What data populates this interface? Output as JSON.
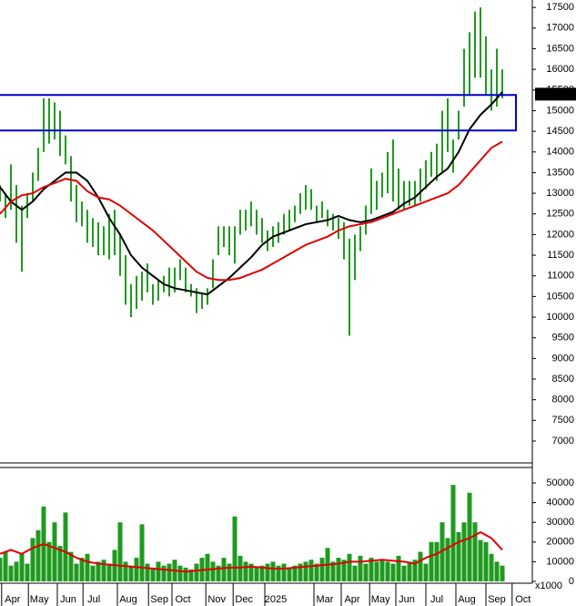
{
  "chart_data": [
    {
      "type": "ohlc",
      "color": "#1f9a1f",
      "xlim": [
        0,
        97.5
      ],
      "xticks": [
        {
          "value": 2.3,
          "label": "Apr"
        },
        {
          "value": 7.2,
          "label": "May"
        },
        {
          "value": 12.5,
          "label": "Jun"
        },
        {
          "value": 17.2,
          "label": "Jul"
        },
        {
          "value": 23.5,
          "label": "Aug"
        },
        {
          "value": 29.2,
          "label": "Sep"
        },
        {
          "value": 33.5,
          "label": "Oct"
        },
        {
          "value": 39.7,
          "label": "Nov"
        },
        {
          "value": 44.7,
          "label": "Dec"
        },
        {
          "value": 50.5,
          "label": "2025"
        },
        {
          "value": 59.5,
          "label": "Mar"
        },
        {
          "value": 64.5,
          "label": "Apr"
        },
        {
          "value": 69.7,
          "label": "May"
        },
        {
          "value": 74.5,
          "label": "Jun"
        },
        {
          "value": 80,
          "label": "Jul"
        },
        {
          "value": 85.5,
          "label": "Aug"
        },
        {
          "value": 91,
          "label": "Sep"
        },
        {
          "value": 95.8,
          "label": "Oct"
        }
      ],
      "ylim": [
        6470,
        17680
      ],
      "yticks": [
        7000,
        7500,
        8000,
        8500,
        9000,
        9500,
        10000,
        10500,
        11000,
        11500,
        12000,
        12500,
        13000,
        13500,
        14000,
        14500,
        15000,
        15500,
        16000,
        16500,
        17000,
        17500
      ],
      "low": [
        12800,
        12400,
        12600,
        11800,
        11100,
        12400,
        12800,
        13300,
        14000,
        14200,
        14300,
        13900,
        13700,
        12800,
        12300,
        12200,
        11800,
        11700,
        11500,
        11500,
        11400,
        11500,
        11000,
        10300,
        10000,
        10200,
        10400,
        10600,
        10300,
        10400,
        10600,
        10500,
        10600,
        10900,
        10600,
        10500,
        10100,
        10200,
        10300,
        10700,
        11500,
        11700,
        11500,
        11300,
        12000,
        12100,
        12200,
        12000,
        11800,
        11600,
        11700,
        11800,
        12000,
        12100,
        12300,
        12500,
        12600,
        12600,
        12300,
        12400,
        12200,
        12100,
        11900,
        11400,
        9550,
        10900,
        11600,
        12000,
        12500,
        12600,
        12900,
        13000,
        12800,
        12600,
        12600,
        12700,
        12700,
        12800,
        13100,
        13400,
        13300,
        13500,
        14000,
        13500,
        14300,
        15100,
        15400,
        15800,
        15800,
        15400,
        15000,
        15100,
        15300
      ],
      "high": [
        13200,
        13000,
        13700,
        13200,
        12700,
        13000,
        13500,
        14100,
        15300,
        15300,
        15200,
        15000,
        14400,
        13900,
        13200,
        12800,
        12600,
        12400,
        12300,
        12200,
        12500,
        12600,
        12000,
        11500,
        10800,
        11000,
        11100,
        11300,
        10800,
        10900,
        11000,
        11200,
        11200,
        11400,
        11200,
        10800,
        10700,
        10600,
        10700,
        11400,
        12200,
        12200,
        12200,
        12200,
        12600,
        12600,
        12800,
        12600,
        12400,
        12100,
        12200,
        12300,
        12500,
        12600,
        12700,
        13000,
        13200,
        13100,
        12700,
        12800,
        12600,
        12500,
        12400,
        12300,
        11900,
        12000,
        12200,
        12700,
        13600,
        13300,
        13500,
        14000,
        14300,
        13600,
        13300,
        13300,
        13300,
        13600,
        13800,
        14000,
        14200,
        15000,
        15300,
        14300,
        15000,
        16500,
        16900,
        17400,
        17500,
        16800,
        16000,
        16500,
        16000
      ],
      "ma_x": [
        0,
        2,
        4,
        6,
        8,
        10,
        12,
        14,
        16,
        18,
        20,
        22,
        24,
        26,
        28,
        30,
        32,
        34,
        36,
        38,
        40,
        42,
        44,
        46,
        48,
        50,
        52,
        54,
        56,
        58,
        60,
        62,
        64,
        66,
        68,
        70,
        72,
        74,
        76,
        78,
        80,
        82,
        84,
        86,
        88,
        90,
        92
      ],
      "series": [
        {
          "color": "#000000",
          "values": [
            13150,
            12800,
            12600,
            12800,
            13100,
            13300,
            13500,
            13500,
            13300,
            12900,
            12400,
            12000,
            11500,
            11200,
            11000,
            10800,
            10700,
            10650,
            10600,
            10550,
            10750,
            10950,
            11200,
            11450,
            11750,
            11950,
            12050,
            12150,
            12250,
            12300,
            12350,
            12450,
            12350,
            12300,
            12350,
            12450,
            12550,
            12750,
            12900,
            13150,
            13400,
            13600,
            14000,
            14550,
            14900,
            15150,
            15450
          ]
        },
        {
          "color": "#e00000",
          "values": [
            12500,
            12800,
            12950,
            13000,
            13150,
            13250,
            13350,
            13300,
            13050,
            12900,
            12850,
            12700,
            12500,
            12300,
            12100,
            11850,
            11600,
            11350,
            11100,
            10950,
            10900,
            10900,
            10950,
            11050,
            11150,
            11300,
            11450,
            11600,
            11750,
            11850,
            11950,
            12100,
            12200,
            12250,
            12300,
            12400,
            12500,
            12600,
            12700,
            12800,
            12900,
            13000,
            13200,
            13500,
            13800,
            14100,
            14250
          ]
        }
      ],
      "zone": [
        14520,
        15380
      ],
      "zone_color": "#0000cc",
      "last_price": 15400,
      "last_price_label": "15400.00"
    },
    {
      "type": "bar",
      "color": "#1f9a1f",
      "unit_label": "x1000",
      "xlim": [
        0,
        97.5
      ],
      "ylim": [
        0,
        56940
      ],
      "yticks": [
        0,
        10000,
        20000,
        30000,
        40000,
        50000
      ],
      "values": [
        12000,
        15000,
        8000,
        10000,
        14000,
        9000,
        22000,
        26000,
        38000,
        20000,
        30000,
        18000,
        35000,
        15000,
        9000,
        12000,
        14000,
        8000,
        10000,
        11000,
        9000,
        16000,
        30000,
        10000,
        8000,
        12000,
        29000,
        9000,
        7000,
        10000,
        8000,
        9000,
        11000,
        8000,
        7000,
        6000,
        9000,
        12000,
        14000,
        10000,
        8000,
        12000,
        9000,
        33000,
        13000,
        10000,
        9000,
        7000,
        8000,
        9000,
        10000,
        8000,
        9000,
        7000,
        8000,
        9000,
        10000,
        11000,
        9000,
        12000,
        17000,
        10000,
        12000,
        11000,
        14000,
        8000,
        13000,
        9000,
        12000,
        10000,
        11000,
        10000,
        9000,
        13000,
        8000,
        10000,
        11000,
        15000,
        9000,
        20000,
        20000,
        30000,
        22000,
        49000,
        25000,
        30000,
        45000,
        30000,
        21000,
        20000,
        14000,
        10000,
        8000
      ],
      "ma_x": [
        0,
        2,
        4,
        6,
        8,
        10,
        12,
        14,
        16,
        18,
        20,
        22,
        24,
        26,
        28,
        30,
        32,
        34,
        36,
        38,
        40,
        42,
        44,
        46,
        48,
        50,
        52,
        54,
        56,
        58,
        60,
        62,
        64,
        66,
        68,
        70,
        72,
        74,
        76,
        78,
        80,
        82,
        84,
        86,
        88,
        90,
        92
      ],
      "ma_color": "#e00000",
      "ma": [
        14000,
        16000,
        14000,
        17000,
        19000,
        17000,
        15000,
        12000,
        10000,
        9000,
        8500,
        8000,
        7500,
        7000,
        6500,
        6000,
        5500,
        5000,
        5500,
        6000,
        6500,
        7000,
        7000,
        7500,
        7000,
        6500,
        6500,
        7000,
        7500,
        8000,
        8500,
        9000,
        10000,
        10000,
        10500,
        11000,
        10500,
        10000,
        9000,
        12000,
        14000,
        17000,
        20000,
        22000,
        25000,
        22000,
        16000
      ]
    }
  ]
}
